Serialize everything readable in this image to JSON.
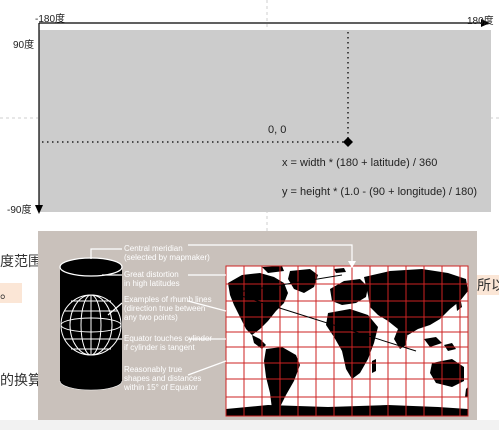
{
  "top_diagram": {
    "lon_min_label": "-180度",
    "lon_max_label": "180度",
    "lat_max_label": "90度",
    "lat_min_label": "-90度",
    "origin_label": "0, 0",
    "formula_x": "x = width * (180 + latitude) / 360",
    "formula_y": "y = height * (1.0 - (90 + longitude) / 180)"
  },
  "background_text": {
    "line1_left": "度范围",
    "line1_right": "所以",
    "line2_left": "。",
    "line3_left": "的换算"
  },
  "mercator_figure": {
    "annotations": [
      [
        "Central meridian",
        "(selected by mapmaker)"
      ],
      [
        "Great distortion",
        "in high latitudes"
      ],
      [
        "Examples of rhumb lines",
        "(direction true between",
        "any two points)"
      ],
      [
        "Equator touches cylinder",
        "if cylinder is tangent"
      ],
      [
        "Reasonably true",
        "shapes and distances",
        "within 15° of Equator"
      ]
    ]
  },
  "colors": {
    "plot_bg": "#cccccc",
    "panel_bg": "#c9c1bb",
    "grid_red": "#cc2222",
    "highlight": "#fbe6d6"
  }
}
